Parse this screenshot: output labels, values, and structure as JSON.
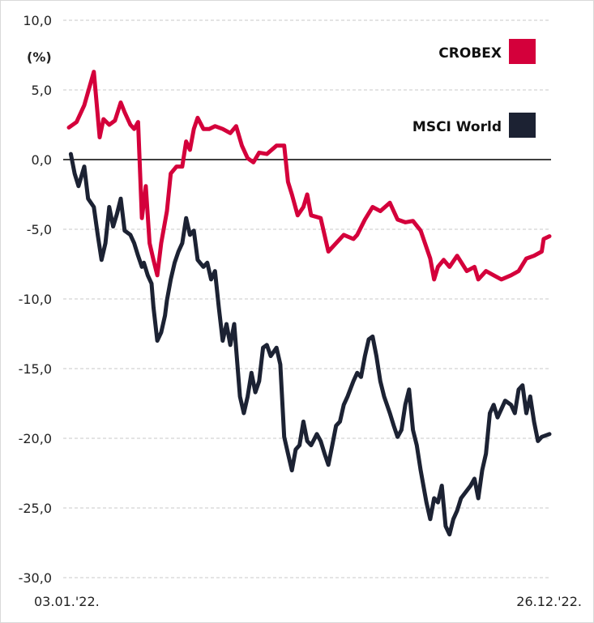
{
  "chart_data": {
    "type": "line",
    "title": "",
    "ylabel": "(%)",
    "xlabel": "",
    "ylim": [
      -30,
      10
    ],
    "xlim": [
      0,
      250
    ],
    "yticks": [
      10,
      5,
      0,
      -5,
      -10,
      -15,
      -20,
      -25,
      -30
    ],
    "ytick_labels": [
      "10,0",
      "5,0",
      "0,0",
      "-5,0",
      "-10,0",
      "-15,0",
      "-20,0",
      "-25,0",
      "-30,0"
    ],
    "x_start_label": "03.01.'22.",
    "x_end_label": "26.12.'22.",
    "grid": "horizontal dashed",
    "legend_position": "top-right",
    "series": [
      {
        "name": "CROBEX",
        "color": "#d4003b",
        "points": [
          [
            0,
            2.3
          ],
          [
            4,
            2.7
          ],
          [
            8,
            3.9
          ],
          [
            13,
            6.3
          ],
          [
            16,
            1.6
          ],
          [
            18,
            2.9
          ],
          [
            21,
            2.5
          ],
          [
            24,
            2.8
          ],
          [
            27,
            4.1
          ],
          [
            29,
            3.4
          ],
          [
            32,
            2.5
          ],
          [
            34,
            2.2
          ],
          [
            36,
            2.7
          ],
          [
            38,
            -4.2
          ],
          [
            40,
            -1.9
          ],
          [
            42,
            -6.0
          ],
          [
            44,
            -7.2
          ],
          [
            46,
            -8.3
          ],
          [
            48,
            -6.0
          ],
          [
            51,
            -3.7
          ],
          [
            53,
            -1.0
          ],
          [
            56,
            -0.5
          ],
          [
            59,
            -0.5
          ],
          [
            61,
            1.3
          ],
          [
            63,
            0.7
          ],
          [
            65,
            2.2
          ],
          [
            67,
            3.0
          ],
          [
            70,
            2.2
          ],
          [
            73,
            2.2
          ],
          [
            76,
            2.4
          ],
          [
            80,
            2.2
          ],
          [
            84,
            1.9
          ],
          [
            87,
            2.4
          ],
          [
            90,
            1.0
          ],
          [
            93,
            0.1
          ],
          [
            96,
            -0.2
          ],
          [
            99,
            0.5
          ],
          [
            103,
            0.4
          ],
          [
            108,
            1.0
          ],
          [
            112,
            1.0
          ],
          [
            114,
            -1.6
          ],
          [
            116,
            -2.5
          ],
          [
            119,
            -4.0
          ],
          [
            122,
            -3.4
          ],
          [
            124,
            -2.5
          ],
          [
            126,
            -4.0
          ],
          [
            131,
            -4.2
          ],
          [
            135,
            -6.6
          ],
          [
            139,
            -6.0
          ],
          [
            143,
            -5.4
          ],
          [
            148,
            -5.7
          ],
          [
            150,
            -5.4
          ],
          [
            154,
            -4.3
          ],
          [
            158,
            -3.4
          ],
          [
            162,
            -3.7
          ],
          [
            167,
            -3.1
          ],
          [
            171,
            -4.3
          ],
          [
            175,
            -4.5
          ],
          [
            179,
            -4.4
          ],
          [
            183,
            -5.1
          ],
          [
            188,
            -7.1
          ],
          [
            190,
            -8.6
          ],
          [
            192,
            -7.7
          ],
          [
            195,
            -7.2
          ],
          [
            198,
            -7.7
          ],
          [
            202,
            -6.9
          ],
          [
            207,
            -8.0
          ],
          [
            211,
            -7.7
          ],
          [
            213,
            -8.6
          ],
          [
            217,
            -8.0
          ],
          [
            221,
            -8.3
          ],
          [
            225,
            -8.6
          ],
          [
            230,
            -8.3
          ],
          [
            234,
            -8.0
          ],
          [
            238,
            -7.1
          ],
          [
            242,
            -6.9
          ],
          [
            246,
            -6.6
          ],
          [
            247,
            -5.7
          ],
          [
            250,
            -5.5
          ]
        ]
      },
      {
        "name": "MSCI World",
        "color": "#1c2233",
        "points": [
          [
            1,
            0.4
          ],
          [
            3,
            -1.0
          ],
          [
            5,
            -1.9
          ],
          [
            8,
            -0.5
          ],
          [
            10,
            -2.8
          ],
          [
            13,
            -3.4
          ],
          [
            15,
            -5.4
          ],
          [
            17,
            -7.2
          ],
          [
            19,
            -6.0
          ],
          [
            21,
            -3.4
          ],
          [
            23,
            -4.8
          ],
          [
            25,
            -3.9
          ],
          [
            27,
            -2.8
          ],
          [
            29,
            -5.1
          ],
          [
            32,
            -5.4
          ],
          [
            34,
            -6.0
          ],
          [
            36,
            -6.9
          ],
          [
            38,
            -7.7
          ],
          [
            39,
            -7.4
          ],
          [
            41,
            -8.3
          ],
          [
            43,
            -8.9
          ],
          [
            44,
            -10.6
          ],
          [
            46,
            -13.0
          ],
          [
            48,
            -12.4
          ],
          [
            50,
            -11.2
          ],
          [
            51,
            -10.1
          ],
          [
            53,
            -8.6
          ],
          [
            55,
            -7.4
          ],
          [
            57,
            -6.6
          ],
          [
            59,
            -6.0
          ],
          [
            61,
            -4.2
          ],
          [
            63,
            -5.4
          ],
          [
            65,
            -5.1
          ],
          [
            67,
            -7.2
          ],
          [
            70,
            -7.7
          ],
          [
            72,
            -7.4
          ],
          [
            74,
            -8.6
          ],
          [
            76,
            -8.0
          ],
          [
            78,
            -10.6
          ],
          [
            80,
            -13.0
          ],
          [
            82,
            -11.8
          ],
          [
            84,
            -13.3
          ],
          [
            86,
            -11.8
          ],
          [
            89,
            -17.0
          ],
          [
            91,
            -18.2
          ],
          [
            93,
            -17.0
          ],
          [
            95,
            -15.3
          ],
          [
            97,
            -16.7
          ],
          [
            99,
            -15.9
          ],
          [
            101,
            -13.5
          ],
          [
            103,
            -13.3
          ],
          [
            105,
            -14.1
          ],
          [
            108,
            -13.5
          ],
          [
            110,
            -14.7
          ],
          [
            112,
            -19.9
          ],
          [
            114,
            -21.1
          ],
          [
            116,
            -22.3
          ],
          [
            118,
            -20.8
          ],
          [
            120,
            -20.5
          ],
          [
            122,
            -18.8
          ],
          [
            124,
            -20.2
          ],
          [
            126,
            -20.5
          ],
          [
            129,
            -19.7
          ],
          [
            131,
            -20.2
          ],
          [
            133,
            -21.1
          ],
          [
            135,
            -21.9
          ],
          [
            137,
            -20.5
          ],
          [
            139,
            -19.1
          ],
          [
            141,
            -18.8
          ],
          [
            143,
            -17.6
          ],
          [
            145,
            -17.0
          ],
          [
            148,
            -15.9
          ],
          [
            150,
            -15.3
          ],
          [
            152,
            -15.6
          ],
          [
            154,
            -14.1
          ],
          [
            156,
            -12.9
          ],
          [
            158,
            -12.7
          ],
          [
            160,
            -14.1
          ],
          [
            162,
            -15.9
          ],
          [
            164,
            -17.0
          ],
          [
            167,
            -18.2
          ],
          [
            169,
            -19.1
          ],
          [
            171,
            -19.9
          ],
          [
            173,
            -19.4
          ],
          [
            175,
            -17.6
          ],
          [
            177,
            -16.5
          ],
          [
            179,
            -19.4
          ],
          [
            181,
            -20.5
          ],
          [
            183,
            -22.3
          ],
          [
            186,
            -24.6
          ],
          [
            188,
            -25.8
          ],
          [
            190,
            -24.3
          ],
          [
            192,
            -24.6
          ],
          [
            194,
            -23.4
          ],
          [
            196,
            -26.3
          ],
          [
            198,
            -26.9
          ],
          [
            200,
            -25.8
          ],
          [
            202,
            -25.2
          ],
          [
            204,
            -24.3
          ],
          [
            209,
            -23.4
          ],
          [
            211,
            -22.9
          ],
          [
            213,
            -24.3
          ],
          [
            215,
            -22.3
          ],
          [
            217,
            -21.1
          ],
          [
            219,
            -18.2
          ],
          [
            221,
            -17.6
          ],
          [
            223,
            -18.5
          ],
          [
            225,
            -17.9
          ],
          [
            227,
            -17.3
          ],
          [
            230,
            -17.6
          ],
          [
            232,
            -18.2
          ],
          [
            234,
            -16.5
          ],
          [
            236,
            -16.2
          ],
          [
            238,
            -18.2
          ],
          [
            240,
            -17.0
          ],
          [
            242,
            -18.8
          ],
          [
            244,
            -20.2
          ],
          [
            246,
            -19.9
          ],
          [
            250,
            -19.7
          ]
        ]
      }
    ]
  }
}
